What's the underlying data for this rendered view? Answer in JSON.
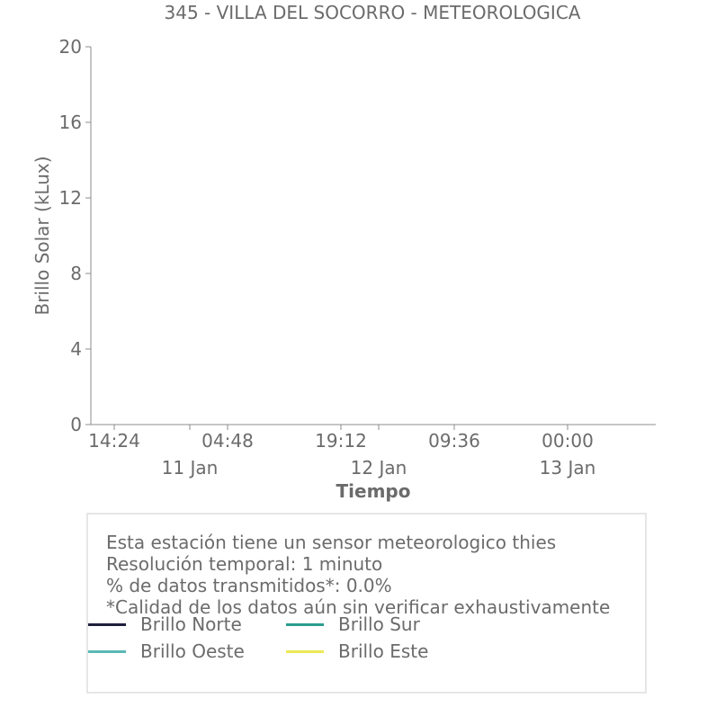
{
  "chart_data": {
    "type": "line",
    "title": "345 - VILLA DEL SOCORRO - METEOROLOGICA",
    "xlabel": "Tiempo",
    "ylabel": "Brillo Solar (kLux)",
    "ylim": [
      0,
      20
    ],
    "yticks": [
      "0",
      "4",
      "8",
      "12",
      "16",
      "20"
    ],
    "xticks_time": [
      "14:24",
      "04:48",
      "19:12",
      "09:36",
      "00:00"
    ],
    "xticks_date": [
      "11 Jan",
      "12 Jan",
      "13 Jan"
    ],
    "grid": false,
    "series": [
      {
        "name": "Brillo Norte",
        "color": "#1f1f3d",
        "values": []
      },
      {
        "name": "Brillo Sur",
        "color": "#2a9d8f",
        "values": []
      },
      {
        "name": "Brillo Oeste",
        "color": "#5ab9b5",
        "values": []
      },
      {
        "name": "Brillo Este",
        "color": "#ece855",
        "values": []
      }
    ]
  },
  "info": {
    "line1": "Esta estación tiene un sensor meteorologico thies",
    "line2": "Resolución temporal: 1 minuto",
    "line3": "% de datos transmitidos*: 0.0%",
    "line4": "*Calidad de los datos aún sin verificar exhaustivamente"
  }
}
